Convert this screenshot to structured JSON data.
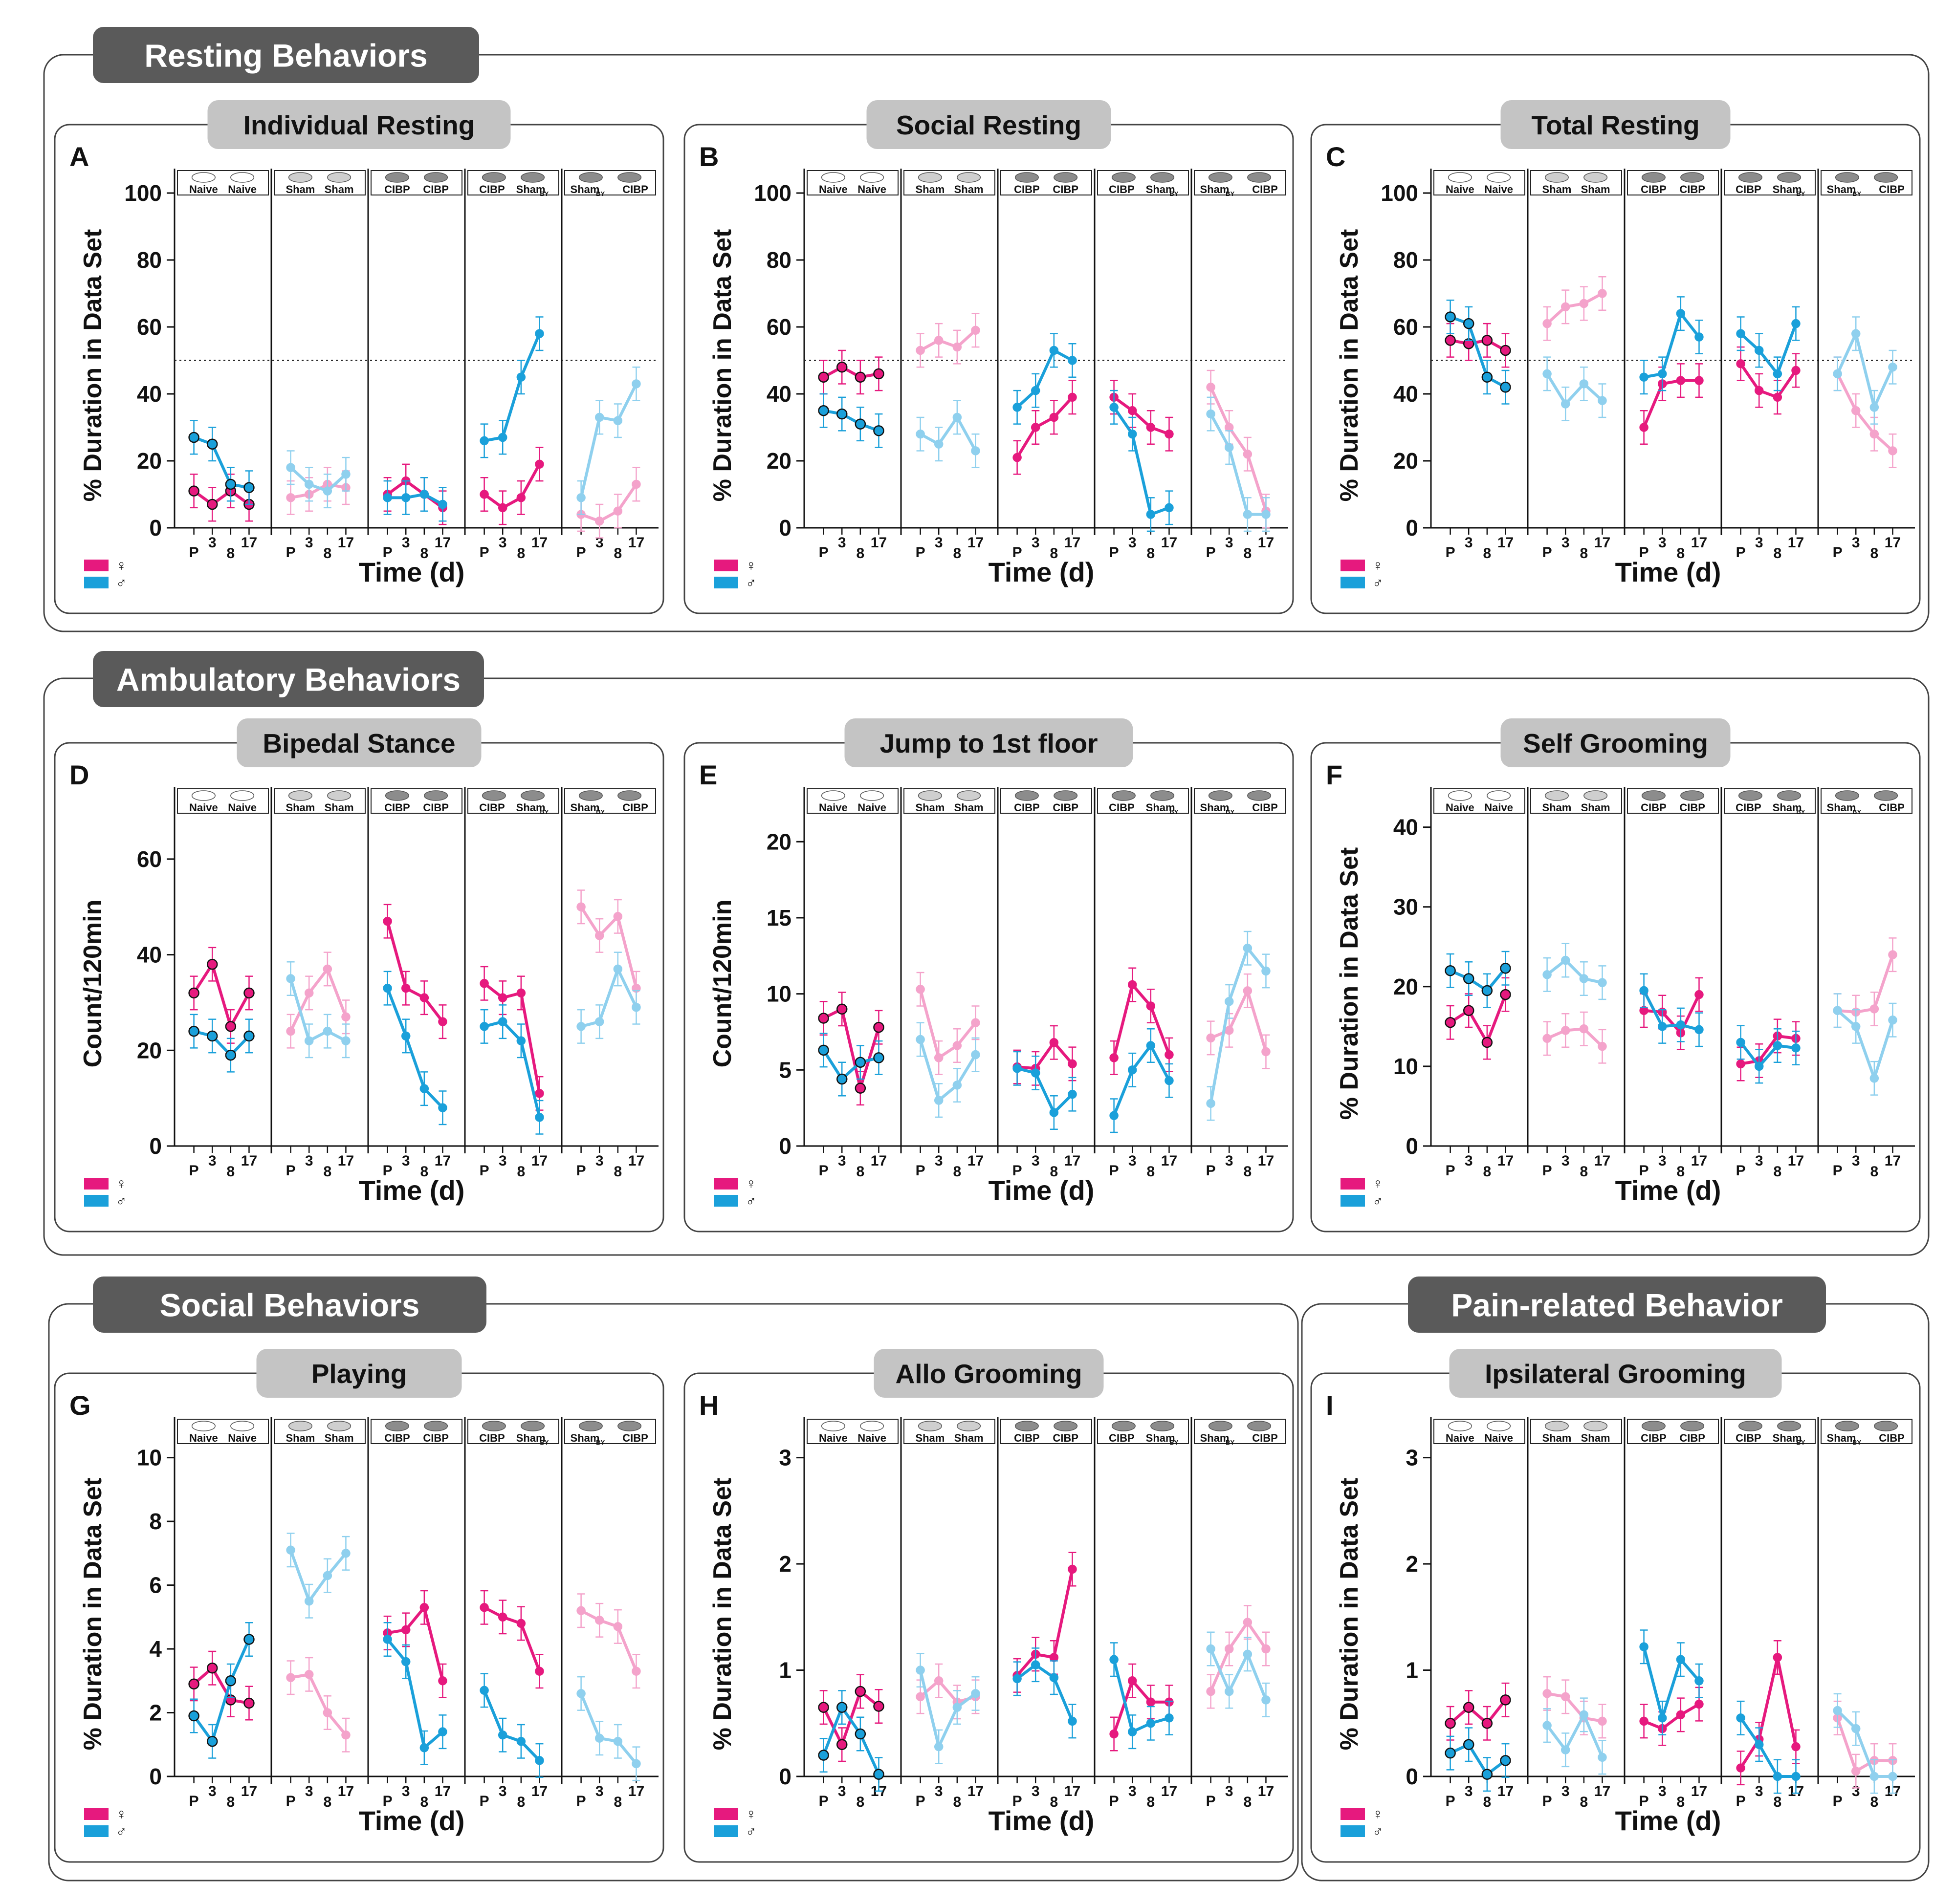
{
  "sections": [
    {
      "title": "Resting Behaviors"
    },
    {
      "title": "Ambulatory Behaviors"
    },
    {
      "title": "Social Behaviors"
    },
    {
      "title": "Pain-related Behavior"
    }
  ],
  "group_labels": [
    [
      "Naive",
      "Naive"
    ],
    [
      "Sham",
      "Sham"
    ],
    [
      "CIBP",
      "CIBP"
    ],
    [
      "CIBP",
      "Sham",
      "BY"
    ],
    [
      "Sham",
      "BY",
      "CIBP"
    ]
  ],
  "x_tick_labels": [
    "P",
    "3",
    "8",
    "17"
  ],
  "xlabel": "Time (d)",
  "legend": {
    "female_symbol": "♀",
    "male_symbol": "♂"
  },
  "colors": {
    "female": "#e6197e",
    "male": "#1aa0da",
    "female_light": "#f4a3cb",
    "male_light": "#8fd0ee",
    "badge": "#5a5a5a",
    "subtitle_badge": "#c4c4c4"
  },
  "chart_data": [
    {
      "letter": "A",
      "title": "Individual Resting",
      "type": "line",
      "ylabel": "% Duration in Data Set",
      "ylim": [
        0,
        100
      ],
      "yticks": [
        0,
        20,
        40,
        60,
        80,
        100
      ],
      "refline": 50,
      "series": [
        {
          "sex": "female",
          "groups": [
            [
              11,
              7,
              11,
              7
            ],
            [
              9,
              10,
              13,
              12
            ],
            [
              10,
              14,
              10,
              6
            ],
            [
              10,
              6,
              9,
              19
            ],
            [
              4,
              2,
              5,
              13
            ]
          ]
        },
        {
          "sex": "male",
          "groups": [
            [
              27,
              25,
              13,
              12
            ],
            [
              18,
              13,
              11,
              16
            ],
            [
              9,
              9,
              10,
              7
            ],
            [
              26,
              27,
              45,
              58
            ],
            [
              9,
              33,
              32,
              43
            ]
          ]
        }
      ]
    },
    {
      "letter": "B",
      "title": "Social Resting",
      "type": "line",
      "ylabel": "% Duration in Data Set",
      "ylim": [
        0,
        100
      ],
      "yticks": [
        0,
        20,
        40,
        60,
        80,
        100
      ],
      "refline": 50,
      "series": [
        {
          "sex": "female",
          "groups": [
            [
              45,
              48,
              45,
              46
            ],
            [
              53,
              56,
              54,
              59
            ],
            [
              21,
              30,
              33,
              39
            ],
            [
              39,
              35,
              30,
              28
            ],
            [
              42,
              30,
              22,
              5
            ]
          ]
        },
        {
          "sex": "male",
          "groups": [
            [
              35,
              34,
              31,
              29
            ],
            [
              28,
              25,
              33,
              23
            ],
            [
              36,
              41,
              53,
              50
            ],
            [
              36,
              28,
              4,
              6
            ],
            [
              34,
              24,
              4,
              4
            ]
          ]
        }
      ]
    },
    {
      "letter": "C",
      "title": "Total Resting",
      "type": "line",
      "ylabel": "% Duration in Data Set",
      "ylim": [
        0,
        100
      ],
      "yticks": [
        0,
        20,
        40,
        60,
        80,
        100
      ],
      "refline": 50,
      "series": [
        {
          "sex": "female",
          "groups": [
            [
              56,
              55,
              56,
              53
            ],
            [
              61,
              66,
              67,
              70
            ],
            [
              30,
              43,
              44,
              44
            ],
            [
              49,
              41,
              39,
              47
            ],
            [
              46,
              35,
              28,
              23
            ]
          ]
        },
        {
          "sex": "male",
          "groups": [
            [
              63,
              61,
              45,
              42
            ],
            [
              46,
              37,
              43,
              38
            ],
            [
              45,
              46,
              64,
              57
            ],
            [
              58,
              53,
              46,
              61
            ],
            [
              46,
              58,
              36,
              48
            ]
          ]
        }
      ]
    },
    {
      "letter": "D",
      "title": "Bipedal Stance",
      "type": "line",
      "ylabel": "Count/120min",
      "ylim": [
        0,
        70
      ],
      "yticks": [
        0,
        20,
        40,
        60
      ],
      "refline": null,
      "series": [
        {
          "sex": "female",
          "groups": [
            [
              32,
              38,
              25,
              32
            ],
            [
              24,
              32,
              37,
              27
            ],
            [
              47,
              33,
              31,
              26
            ],
            [
              34,
              31,
              32,
              11
            ],
            [
              50,
              44,
              48,
              33
            ]
          ]
        },
        {
          "sex": "male",
          "groups": [
            [
              24,
              23,
              19,
              23
            ],
            [
              35,
              22,
              24,
              22
            ],
            [
              33,
              23,
              12,
              8
            ],
            [
              25,
              26,
              22,
              6
            ],
            [
              25,
              26,
              37,
              29
            ]
          ]
        }
      ]
    },
    {
      "letter": "E",
      "title": "Jump to 1st floor",
      "type": "line",
      "ylabel": "Count/120min",
      "ylim": [
        0,
        22
      ],
      "yticks": [
        0,
        5,
        10,
        15,
        20
      ],
      "refline": null,
      "series": [
        {
          "sex": "female",
          "groups": [
            [
              8.4,
              9,
              3.8,
              7.8
            ],
            [
              10.3,
              5.8,
              6.6,
              8.1
            ],
            [
              5.2,
              5.1,
              6.8,
              5.4
            ],
            [
              5.8,
              10.6,
              9.2,
              6
            ],
            [
              7.1,
              7.6,
              10.2,
              6.2
            ]
          ]
        },
        {
          "sex": "male",
          "groups": [
            [
              6.3,
              4.4,
              5.5,
              5.8
            ],
            [
              7,
              3,
              4,
              6
            ],
            [
              5.1,
              4.8,
              2.2,
              3.4
            ],
            [
              2,
              5,
              6.6,
              4.3
            ],
            [
              2.8,
              9.5,
              13,
              11.5
            ]
          ]
        }
      ]
    },
    {
      "letter": "F",
      "title": "Self Grooming",
      "type": "line",
      "ylabel": "% Duration in Data Set",
      "ylim": [
        0,
        42
      ],
      "yticks": [
        0,
        10,
        20,
        30,
        40
      ],
      "refline": null,
      "series": [
        {
          "sex": "female",
          "groups": [
            [
              15.5,
              17,
              13,
              19
            ],
            [
              13.5,
              14.5,
              14.7,
              12.5
            ],
            [
              17,
              16.8,
              14.2,
              19
            ],
            [
              10.3,
              10.7,
              13.8,
              13.5
            ],
            [
              17,
              16.8,
              17.2,
              24
            ]
          ]
        },
        {
          "sex": "male",
          "groups": [
            [
              22,
              21,
              19.5,
              22.3
            ],
            [
              21.5,
              23.3,
              21,
              20.5
            ],
            [
              19.5,
              15,
              15.2,
              14.6
            ],
            [
              13,
              10,
              12.6,
              12.3
            ],
            [
              17,
              15,
              8.5,
              15.8
            ]
          ]
        }
      ]
    },
    {
      "letter": "G",
      "title": "Playing",
      "type": "line",
      "ylabel": "% Duration in Data Set",
      "ylim": [
        0,
        10.5
      ],
      "yticks": [
        0,
        2,
        4,
        6,
        8,
        10
      ],
      "refline": null,
      "series": [
        {
          "sex": "female",
          "groups": [
            [
              2.9,
              3.4,
              2.4,
              2.3
            ],
            [
              3.1,
              3.2,
              2,
              1.3
            ],
            [
              4.5,
              4.6,
              5.3,
              3
            ],
            [
              5.3,
              5,
              4.8,
              3.3
            ],
            [
              5.2,
              4.9,
              4.7,
              3.3
            ]
          ]
        },
        {
          "sex": "male",
          "groups": [
            [
              1.9,
              1.1,
              3,
              4.3
            ],
            [
              7.1,
              5.5,
              6.3,
              7
            ],
            [
              4.3,
              3.6,
              0.9,
              1.4
            ],
            [
              2.7,
              1.3,
              1.1,
              0.5
            ],
            [
              2.6,
              1.2,
              1.1,
              0.4
            ]
          ]
        }
      ]
    },
    {
      "letter": "H",
      "title": "Allo Grooming",
      "type": "line",
      "ylabel": "% Duration in Data Set",
      "ylim": [
        0,
        3.15
      ],
      "yticks": [
        0,
        1,
        2,
        3
      ],
      "refline": null,
      "series": [
        {
          "sex": "female",
          "groups": [
            [
              0.65,
              0.3,
              0.8,
              0.66
            ],
            [
              0.75,
              0.9,
              0.7,
              0.75
            ],
            [
              0.95,
              1.15,
              1.12,
              1.95
            ],
            [
              0.4,
              0.9,
              0.7,
              0.7
            ],
            [
              0.8,
              1.2,
              1.45,
              1.2
            ]
          ]
        },
        {
          "sex": "male",
          "groups": [
            [
              0.2,
              0.65,
              0.4,
              0.02
            ],
            [
              1.0,
              0.28,
              0.65,
              0.78
            ],
            [
              0.92,
              1.05,
              0.93,
              0.52
            ],
            [
              1.1,
              0.42,
              0.5,
              0.55
            ],
            [
              1.2,
              0.8,
              1.15,
              0.72
            ]
          ]
        }
      ]
    },
    {
      "letter": "I",
      "title": "Ipsilateral Grooming",
      "type": "line",
      "ylabel": "% Duration in Data Set",
      "ylim": [
        0,
        3.15
      ],
      "yticks": [
        0,
        1,
        2,
        3
      ],
      "refline": null,
      "series": [
        {
          "sex": "female",
          "groups": [
            [
              0.5,
              0.65,
              0.5,
              0.72
            ],
            [
              0.78,
              0.75,
              0.55,
              0.52
            ],
            [
              0.52,
              0.45,
              0.58,
              0.68
            ],
            [
              0.08,
              0.35,
              1.12,
              0.28
            ],
            [
              0.55,
              0.05,
              0.15,
              0.15
            ]
          ]
        },
        {
          "sex": "male",
          "groups": [
            [
              0.22,
              0.3,
              0.02,
              0.15
            ],
            [
              0.48,
              0.25,
              0.58,
              0.18
            ],
            [
              1.22,
              0.55,
              1.1,
              0.9
            ],
            [
              0.55,
              0.3,
              0.0,
              0.0
            ],
            [
              0.62,
              0.45,
              0.0,
              0.0
            ]
          ]
        }
      ]
    }
  ]
}
